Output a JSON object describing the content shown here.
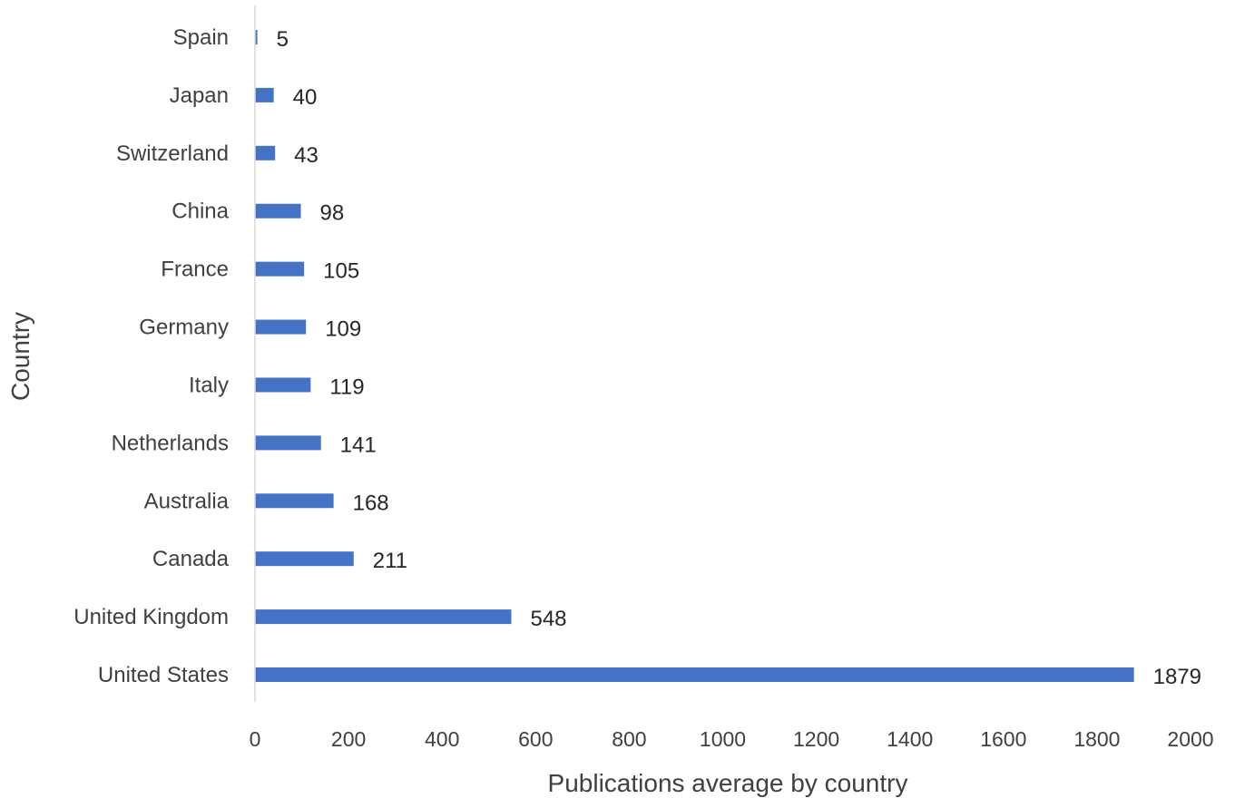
{
  "chart_data": {
    "type": "bar",
    "orientation": "horizontal",
    "categories": [
      "Spain",
      "Japan",
      "Switzerland",
      "China",
      "France",
      "Germany",
      "Italy",
      "Netherlands",
      "Australia",
      "Canada",
      "United Kingdom",
      "United States"
    ],
    "values": [
      5,
      40,
      43,
      98,
      105,
      109,
      119,
      141,
      168,
      211,
      548,
      1879
    ],
    "data_labels": [
      "5",
      "40",
      "43",
      "98",
      "105",
      "109",
      "119",
      "141",
      "168",
      "211",
      "548",
      "1879"
    ],
    "xlabel": "Publications average by country",
    "ylabel": "Country",
    "xlim": [
      0,
      2000
    ],
    "xticks": [
      "0",
      "200",
      "400",
      "600",
      "800",
      "1000",
      "1200",
      "1400",
      "1600",
      "1800",
      "2000"
    ],
    "grid": false,
    "legend": "none",
    "bar_color": "#4472c4",
    "axis_color": "#d9d9d9"
  }
}
